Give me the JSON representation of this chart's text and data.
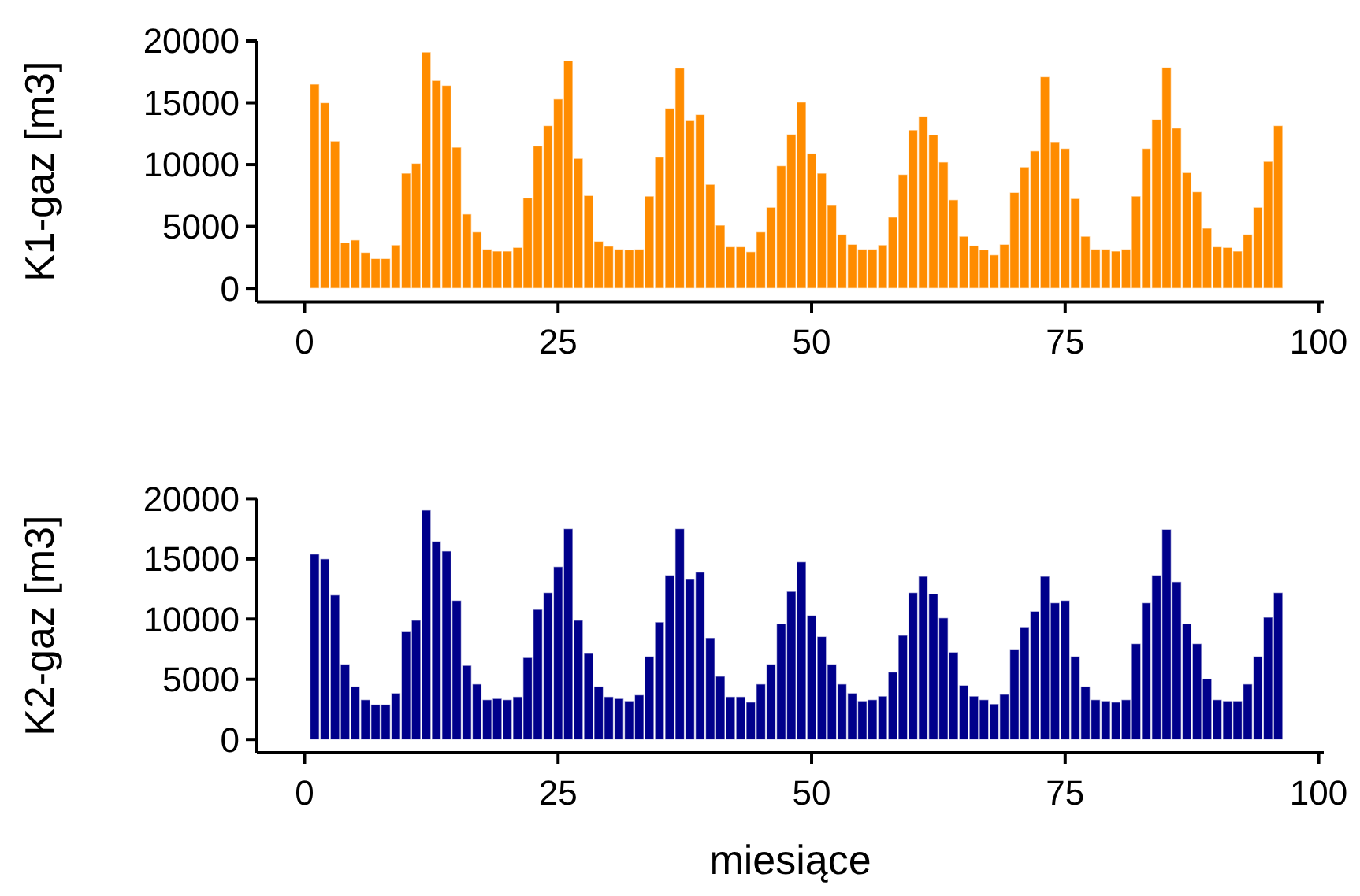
{
  "chart_data": [
    {
      "type": "bar",
      "ylabel": "K1-gaz [m3]",
      "color": "#ff8c00",
      "grid": false,
      "xlim": [
        -4.7,
        100.5
      ],
      "xticks": [
        0,
        25,
        50,
        75,
        100
      ],
      "ylim": [
        -1100,
        20000
      ],
      "yticks": [
        0,
        5000,
        10000,
        15000,
        20000
      ],
      "x": [
        1,
        2,
        3,
        4,
        5,
        6,
        7,
        8,
        9,
        10,
        11,
        12,
        13,
        14,
        15,
        16,
        17,
        18,
        19,
        20,
        21,
        22,
        23,
        24,
        25,
        26,
        27,
        28,
        29,
        30,
        31,
        32,
        33,
        34,
        35,
        36,
        37,
        38,
        39,
        40,
        41,
        42,
        43,
        44,
        45,
        46,
        47,
        48,
        49,
        50,
        51,
        52,
        53,
        54,
        55,
        56,
        57,
        58,
        59,
        60,
        61,
        62,
        63,
        64,
        65,
        66,
        67,
        68,
        69,
        70,
        71,
        72,
        73,
        74,
        75,
        76,
        77,
        78,
        79,
        80,
        81,
        82,
        83,
        84,
        85,
        86,
        87,
        88,
        89,
        90,
        91,
        92,
        93,
        94,
        95,
        96
      ],
      "values": [
        16500,
        15000,
        11900,
        3700,
        3900,
        2900,
        2400,
        2400,
        3500,
        9300,
        10100,
        19100,
        16800,
        16400,
        11400,
        6000,
        4550,
        3150,
        3000,
        3000,
        3300,
        7300,
        11500,
        13150,
        15300,
        18400,
        10500,
        7500,
        3800,
        3400,
        3150,
        3100,
        3150,
        7450,
        10600,
        14550,
        17800,
        13550,
        14050,
        8400,
        5100,
        3350,
        3350,
        2950,
        4550,
        6550,
        9900,
        12450,
        15050,
        10900,
        9300,
        6700,
        4350,
        3550,
        3150,
        3150,
        3500,
        5750,
        9200,
        12800,
        13900,
        12400,
        10200,
        7150,
        4200,
        3450,
        3100,
        2700,
        3550,
        7750,
        9800,
        11100,
        17100,
        11850,
        11300,
        7250,
        4200,
        3150,
        3150,
        3000,
        3150,
        7450,
        11300,
        13650,
        17850,
        12950,
        9350,
        7800,
        4850,
        3350,
        3300,
        3000,
        4350,
        6550,
        10250,
        13150
      ]
    },
    {
      "type": "bar",
      "ylabel": "K2-gaz [m3]",
      "xlabel": "miesiące",
      "color": "#00008b",
      "grid": false,
      "xlim": [
        -4.7,
        100.5
      ],
      "xticks": [
        0,
        25,
        50,
        75,
        100
      ],
      "ylim": [
        -1100,
        20000
      ],
      "yticks": [
        0,
        5000,
        10000,
        15000,
        20000
      ],
      "x": [
        1,
        2,
        3,
        4,
        5,
        6,
        7,
        8,
        9,
        10,
        11,
        12,
        13,
        14,
        15,
        16,
        17,
        18,
        19,
        20,
        21,
        22,
        23,
        24,
        25,
        26,
        27,
        28,
        29,
        30,
        31,
        32,
        33,
        34,
        35,
        36,
        37,
        38,
        39,
        40,
        41,
        42,
        43,
        44,
        45,
        46,
        47,
        48,
        49,
        50,
        51,
        52,
        53,
        54,
        55,
        56,
        57,
        58,
        59,
        60,
        61,
        62,
        63,
        64,
        65,
        66,
        67,
        68,
        69,
        70,
        71,
        72,
        73,
        74,
        75,
        76,
        77,
        78,
        79,
        80,
        81,
        82,
        83,
        84,
        85,
        86,
        87,
        88,
        89,
        90,
        91,
        92,
        93,
        94,
        95,
        96
      ],
      "values": [
        15400,
        15000,
        12000,
        6250,
        4400,
        3300,
        2900,
        2900,
        3850,
        8950,
        9900,
        19050,
        16450,
        15650,
        11550,
        6150,
        4600,
        3300,
        3400,
        3300,
        3550,
        6800,
        10800,
        12200,
        14350,
        17500,
        9900,
        7150,
        4400,
        3550,
        3400,
        3200,
        3700,
        6900,
        9750,
        13650,
        17500,
        13300,
        13900,
        8450,
        5250,
        3550,
        3550,
        3100,
        4600,
        6250,
        9600,
        12300,
        14750,
        10300,
        8550,
        6250,
        4600,
        3850,
        3200,
        3300,
        3600,
        5600,
        8650,
        12200,
        13550,
        12100,
        10100,
        7250,
        4500,
        3600,
        3300,
        2950,
        3750,
        7500,
        9350,
        10650,
        13550,
        11350,
        11550,
        6900,
        4400,
        3300,
        3200,
        3100,
        3300,
        7950,
        11350,
        13650,
        17450,
        13100,
        9600,
        7950,
        5050,
        3300,
        3200,
        3200,
        4600,
        6900,
        10150,
        12200
      ]
    }
  ]
}
